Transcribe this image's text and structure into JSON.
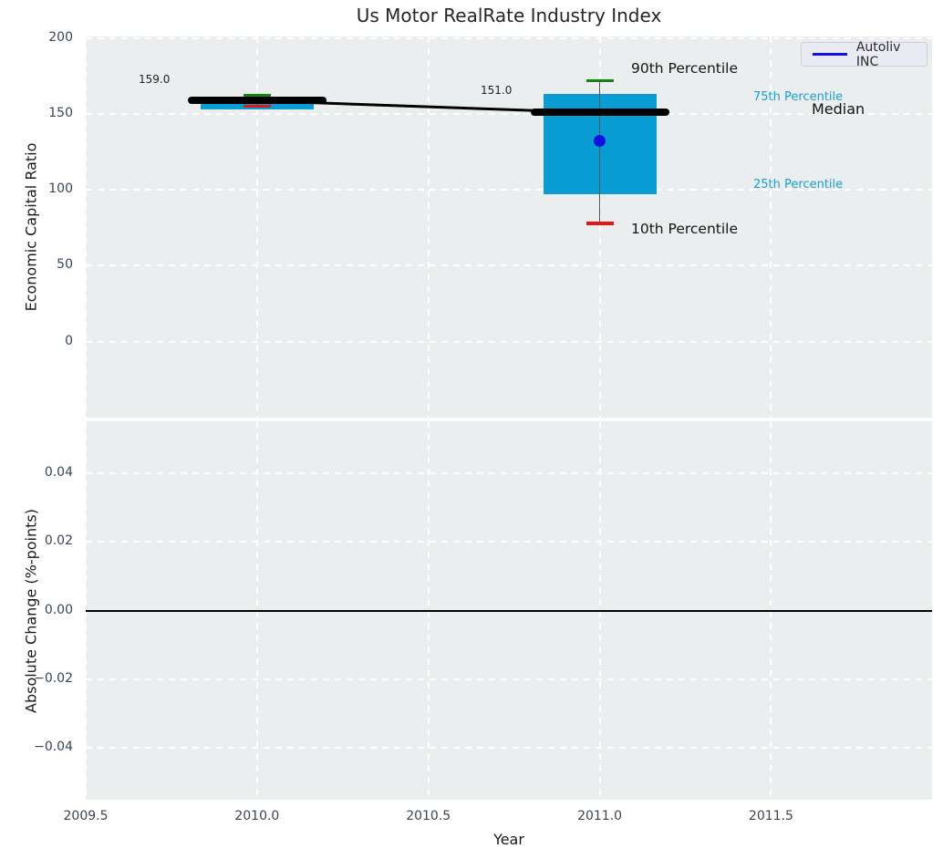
{
  "chart_data": [
    {
      "type": "boxplot+line",
      "title": "Us Motor RealRate Industry Index",
      "ylabel": "Economic Capital Ratio",
      "xlim": [
        2009.5,
        2011.97
      ],
      "ylim": [
        -50,
        201
      ],
      "grid": true,
      "yticks": {
        "values": [
          200,
          150,
          100,
          50,
          0
        ],
        "labels": [
          "200",
          "150",
          "100",
          "50",
          "0"
        ]
      },
      "xticks": {
        "values": [
          2009.5,
          2010.0,
          2010.5,
          2011.0,
          2011.5
        ],
        "labels": [
          "2009.5",
          "2010.0",
          "2010.5",
          "2011.0",
          "2011.5"
        ]
      },
      "legend": {
        "label": "Autoliv INC",
        "line_color": "#1212e0",
        "position": "upper right"
      },
      "series_median": {
        "name": "Median",
        "x": [
          2010,
          2011
        ],
        "y": [
          159.0,
          151.0
        ],
        "color": "#000000"
      },
      "boxes": [
        {
          "year": 2010,
          "p90": 162,
          "p75": 160.5,
          "median": 159.0,
          "p25": 153,
          "p10": 155,
          "company": null,
          "label": "159.0"
        },
        {
          "year": 2011,
          "p90": 172,
          "p75": 163,
          "median": 151.0,
          "p25": 97,
          "p10": 78,
          "company": 132,
          "label": "151.0"
        }
      ],
      "colors": {
        "box": "#0a9dd3",
        "p90_cap": "#148214",
        "p10_cap": "#e61414",
        "whisker": "#555555",
        "company_dot": "#1212e0",
        "median_line": "#000000",
        "background": "#EAEEEF",
        "gridline": "#ffffff"
      },
      "annotations": [
        {
          "id": "p90",
          "text": "90th Percentile"
        },
        {
          "id": "p75",
          "text": "75th Percentile"
        },
        {
          "id": "median",
          "text": "Median"
        },
        {
          "id": "p25",
          "text": "25th Percentile"
        },
        {
          "id": "p10",
          "text": "10th Percentile"
        }
      ]
    },
    {
      "type": "line",
      "ylabel": "Absolute Change (%-points)",
      "xlabel": "Year",
      "ylim": [
        -0.055,
        0.055
      ],
      "grid": true,
      "shares_x_axis": true,
      "yticks": {
        "values": [
          0.04,
          0.02,
          0.0,
          -0.02,
          -0.04
        ],
        "labels": [
          "0.04",
          "0.02",
          "0.00",
          "−0.02",
          "−0.04"
        ]
      },
      "zero_line": {
        "y": 0.0,
        "color": "#000000"
      }
    }
  ]
}
